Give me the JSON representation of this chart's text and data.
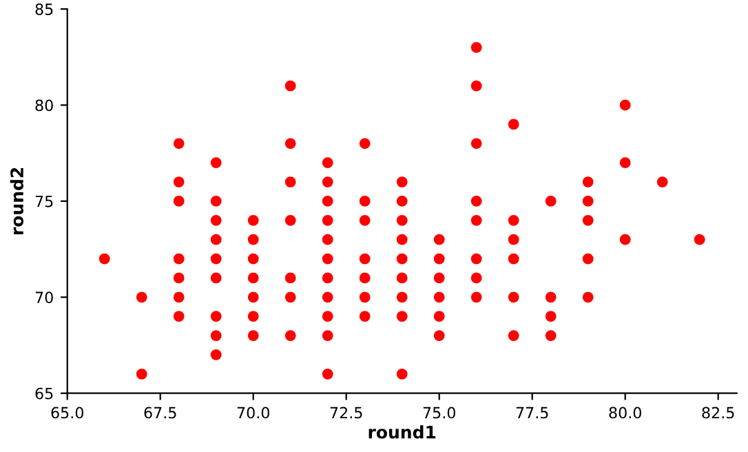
{
  "chart_data": {
    "type": "scatter",
    "xlabel": "round1",
    "ylabel": "round2",
    "marker": "circle",
    "grid": false,
    "legend": false,
    "xlim": [
      65,
      83
    ],
    "xticks": [
      {
        "value": 65,
        "label": "65.0"
      },
      {
        "value": 67.5,
        "label": "67.5"
      },
      {
        "value": 70,
        "label": "70.0"
      },
      {
        "value": 72.5,
        "label": "72.5"
      },
      {
        "value": 75,
        "label": "75.0"
      },
      {
        "value": 77.5,
        "label": "77.5"
      },
      {
        "value": 80,
        "label": "80.0"
      },
      {
        "value": 82.5,
        "label": "82.5"
      }
    ],
    "ylim": [
      65,
      85
    ],
    "yticks": [
      65,
      70,
      75,
      80,
      85
    ],
    "series": [
      {
        "color": "#ff0000",
        "x": [
          66,
          67,
          67,
          68,
          68,
          68,
          68,
          68,
          68,
          68,
          69,
          69,
          69,
          69,
          69,
          69,
          69,
          69,
          69,
          70,
          70,
          70,
          70,
          70,
          70,
          70,
          71,
          71,
          71,
          71,
          71,
          71,
          71,
          72,
          72,
          72,
          72,
          72,
          72,
          72,
          72,
          72,
          72,
          72,
          73,
          73,
          73,
          73,
          73,
          73,
          73,
          74,
          74,
          74,
          74,
          74,
          74,
          74,
          74,
          74,
          75,
          75,
          75,
          75,
          75,
          75,
          76,
          76,
          76,
          76,
          76,
          76,
          76,
          76,
          77,
          77,
          77,
          77,
          77,
          77,
          78,
          78,
          78,
          78,
          79,
          79,
          79,
          79,
          79,
          80,
          80,
          80,
          81,
          82
        ],
        "values": [
          72,
          70,
          66,
          78,
          76,
          75,
          72,
          71,
          70,
          69,
          77,
          75,
          74,
          73,
          72,
          71,
          69,
          68,
          67,
          74,
          73,
          72,
          71,
          70,
          69,
          68,
          81,
          78,
          76,
          74,
          71,
          70,
          68,
          77,
          76,
          75,
          74,
          73,
          72,
          71,
          70,
          69,
          68,
          66,
          78,
          75,
          74,
          72,
          71,
          70,
          69,
          76,
          75,
          74,
          73,
          72,
          71,
          70,
          69,
          66,
          73,
          72,
          71,
          70,
          69,
          68,
          83,
          81,
          78,
          75,
          74,
          72,
          71,
          70,
          79,
          74,
          73,
          72,
          70,
          68,
          75,
          70,
          69,
          68,
          76,
          75,
          74,
          72,
          70,
          80,
          77,
          73,
          76,
          73
        ]
      }
    ]
  }
}
